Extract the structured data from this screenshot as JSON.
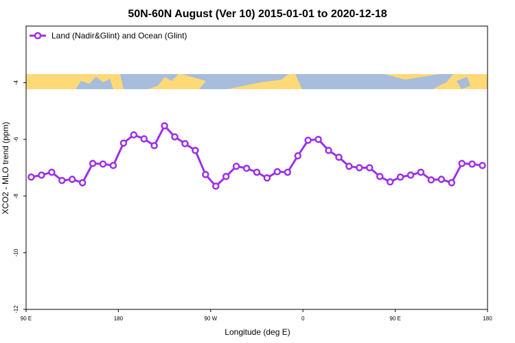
{
  "chart_data": {
    "type": "line",
    "title": "50N-60N August (Ver 10)   2015-01-01 to 2020-12-18",
    "x_label": "Longitude (deg E)",
    "y_label": "XCO2 - MLO trend (ppm)",
    "x": [
      95,
      105,
      115,
      125,
      135,
      145,
      155,
      165,
      175,
      185,
      195,
      205,
      215,
      225,
      235,
      245,
      255,
      265,
      275,
      285,
      295,
      305,
      315,
      325,
      335,
      345,
      355,
      365,
      375,
      385,
      395,
      405,
      415,
      425,
      435,
      445,
      455,
      465,
      475,
      485,
      495,
      505,
      515,
      525,
      535
    ],
    "series": [
      {
        "name": "Land (Nadir&Glint) and Ocean (Glint)",
        "color": "#9b30e8",
        "values": [
          -7.33,
          -7.26,
          -7.16,
          -7.45,
          -7.41,
          -7.53,
          -6.85,
          -6.87,
          -6.92,
          -6.13,
          -5.84,
          -5.98,
          -6.22,
          -5.52,
          -5.91,
          -6.15,
          -6.39,
          -7.24,
          -7.65,
          -7.31,
          -6.95,
          -7.02,
          -7.16,
          -7.36,
          -7.14,
          -7.16,
          -6.58,
          -6.03,
          -6.0,
          -6.39,
          -6.63,
          -6.95,
          -7.0,
          -7.0,
          -7.31,
          -7.5,
          -7.33,
          -7.26,
          -7.16,
          -7.43,
          -7.41,
          -7.53,
          -6.85,
          -6.87,
          -6.92
        ]
      }
    ],
    "xlim": [
      90,
      540
    ],
    "xticks": [
      {
        "value": 90,
        "label": "90 E"
      },
      {
        "value": 180,
        "label": "180"
      },
      {
        "value": 270,
        "label": "90 W"
      },
      {
        "value": 360,
        "label": "0"
      },
      {
        "value": 450,
        "label": "90 E"
      },
      {
        "value": 540,
        "label": "180"
      }
    ],
    "ylim": [
      -12,
      -2
    ],
    "yticks": [
      -12,
      -10,
      -8,
      -6,
      -4
    ],
    "grid": false,
    "legend": "upper left"
  }
}
